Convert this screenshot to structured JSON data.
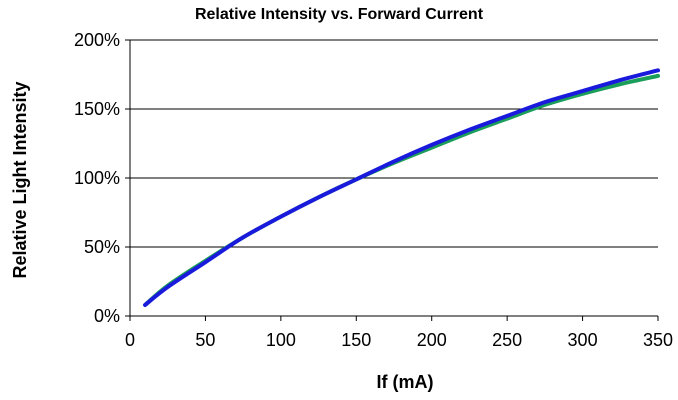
{
  "chart_data": {
    "type": "line",
    "title": "Relative Intensity vs. Forward Current",
    "xlabel": "If (mA)",
    "ylabel": "Relative Light Intensity",
    "xlim": [
      0,
      350
    ],
    "ylim": [
      0,
      200
    ],
    "xticks": [
      "0",
      "50",
      "100",
      "150",
      "200",
      "250",
      "300",
      "350"
    ],
    "yticks": [
      "0%",
      "50%",
      "100%",
      "150%",
      "200%"
    ],
    "grid": "horizontal",
    "legend": "none",
    "series": [
      {
        "color": "#1a9e5a",
        "x": [
          10,
          25,
          50,
          75,
          100,
          125,
          150,
          175,
          200,
          225,
          250,
          275,
          300,
          325,
          350
        ],
        "y": [
          8,
          22,
          40,
          57,
          72,
          86,
          99,
          111,
          122,
          133,
          143,
          153,
          161,
          168,
          174
        ]
      },
      {
        "color": "#1a1adc",
        "x": [
          10,
          25,
          50,
          75,
          100,
          125,
          150,
          175,
          200,
          225,
          250,
          275,
          300,
          325,
          350
        ],
        "y": [
          8,
          21,
          39,
          57,
          72,
          86,
          99,
          112,
          124,
          135,
          145,
          155,
          163,
          171,
          178
        ]
      }
    ]
  }
}
